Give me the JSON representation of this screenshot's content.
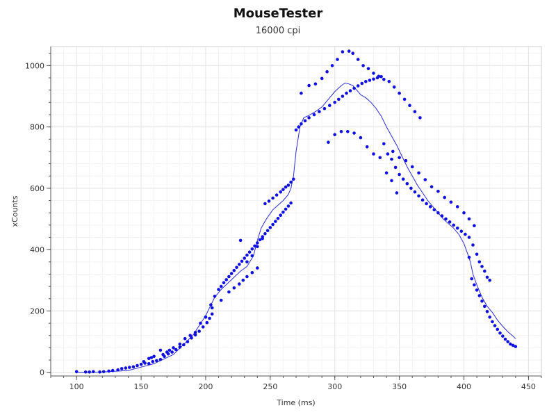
{
  "chart_data": {
    "type": "scatter",
    "title": "MouseTester",
    "subtitle": "16000 cpi",
    "xlabel": "Time (ms)",
    "ylabel": "xCounts",
    "xlim": [
      80,
      460
    ],
    "ylim": [
      -12,
      1062
    ],
    "x_ticks": [
      100,
      150,
      200,
      250,
      300,
      350,
      400,
      450
    ],
    "y_ticks": [
      0,
      200,
      400,
      600,
      800,
      1000
    ],
    "grid": true,
    "colors": {
      "points": "#1010e0",
      "line": "#2a2ad0",
      "grid": "#ececec",
      "axis": "#555555"
    },
    "series": [
      {
        "type": "scatter",
        "points": [
          [
            100,
            2
          ],
          [
            107,
            1
          ],
          [
            110,
            1
          ],
          [
            113,
            2
          ],
          [
            118,
            1
          ],
          [
            121,
            2
          ],
          [
            125,
            4
          ],
          [
            128,
            6
          ],
          [
            132,
            8
          ],
          [
            135,
            12
          ],
          [
            138,
            14
          ],
          [
            141,
            16
          ],
          [
            144,
            18
          ],
          [
            147,
            22
          ],
          [
            150,
            26
          ],
          [
            153,
            30
          ],
          [
            156,
            28
          ],
          [
            159,
            35
          ],
          [
            162,
            38
          ],
          [
            165,
            42
          ],
          [
            168,
            52
          ],
          [
            171,
            60
          ],
          [
            174,
            66
          ],
          [
            177,
            74
          ],
          [
            180,
            82
          ],
          [
            183,
            90
          ],
          [
            186,
            100
          ],
          [
            189,
            112
          ],
          [
            192,
            122
          ],
          [
            195,
            134
          ],
          [
            198,
            148
          ],
          [
            201,
            162
          ],
          [
            203,
            176
          ],
          [
            205,
            190
          ],
          [
            152,
            35
          ],
          [
            156,
            45
          ],
          [
            158,
            48
          ],
          [
            160,
            52
          ],
          [
            165,
            72
          ],
          [
            167,
            58
          ],
          [
            170,
            66
          ],
          [
            172,
            72
          ],
          [
            175,
            80
          ],
          [
            180,
            92
          ],
          [
            184,
            110
          ],
          [
            188,
            120
          ],
          [
            192,
            130
          ],
          [
            196,
            160
          ],
          [
            200,
            180
          ],
          [
            204,
            220
          ],
          [
            207,
            248
          ],
          [
            210,
            270
          ],
          [
            212,
            280
          ],
          [
            214,
            292
          ],
          [
            216,
            302
          ],
          [
            218,
            312
          ],
          [
            220,
            322
          ],
          [
            222,
            332
          ],
          [
            224,
            342
          ],
          [
            226,
            352
          ],
          [
            228,
            362
          ],
          [
            230,
            372
          ],
          [
            232,
            382
          ],
          [
            234,
            392
          ],
          [
            236,
            402
          ],
          [
            238,
            412
          ],
          [
            240,
            422
          ],
          [
            242,
            432
          ],
          [
            244,
            442
          ],
          [
            246,
            452
          ],
          [
            248,
            462
          ],
          [
            250,
            472
          ],
          [
            252,
            482
          ],
          [
            254,
            492
          ],
          [
            256,
            502
          ],
          [
            258,
            512
          ],
          [
            260,
            522
          ],
          [
            262,
            532
          ],
          [
            264,
            542
          ],
          [
            266,
            552
          ],
          [
            200,
            180
          ],
          [
            205,
            210
          ],
          [
            212,
            235
          ],
          [
            218,
            262
          ],
          [
            222,
            275
          ],
          [
            226,
            288
          ],
          [
            229,
            300
          ],
          [
            232,
            312
          ],
          [
            236,
            325
          ],
          [
            240,
            340
          ],
          [
            227,
            430
          ],
          [
            232,
            360
          ],
          [
            236,
            380
          ],
          [
            240,
            410
          ],
          [
            244,
            436
          ],
          [
            246,
            550
          ],
          [
            249,
            558
          ],
          [
            252,
            568
          ],
          [
            255,
            578
          ],
          [
            258,
            588
          ],
          [
            260,
            596
          ],
          [
            262,
            604
          ],
          [
            264,
            610
          ],
          [
            266,
            620
          ],
          [
            268,
            630
          ],
          [
            270,
            790
          ],
          [
            272,
            800
          ],
          [
            274,
            810
          ],
          [
            277,
            820
          ],
          [
            280,
            830
          ],
          [
            284,
            840
          ],
          [
            288,
            850
          ],
          [
            292,
            860
          ],
          [
            296,
            870
          ],
          [
            300,
            880
          ],
          [
            303,
            890
          ],
          [
            306,
            900
          ],
          [
            309,
            910
          ],
          [
            312,
            918
          ],
          [
            315,
            926
          ],
          [
            318,
            934
          ],
          [
            321,
            942
          ],
          [
            324,
            948
          ],
          [
            327,
            952
          ],
          [
            330,
            956
          ],
          [
            333,
            960
          ],
          [
            336,
            964
          ],
          [
            274,
            910
          ],
          [
            280,
            935
          ],
          [
            285,
            940
          ],
          [
            290,
            958
          ],
          [
            294,
            980
          ],
          [
            298,
            1000
          ],
          [
            302,
            1020
          ],
          [
            306,
            1045
          ],
          [
            311,
            1047
          ],
          [
            314,
            1040
          ],
          [
            318,
            1020
          ],
          [
            322,
            1000
          ],
          [
            326,
            990
          ],
          [
            330,
            975
          ],
          [
            334,
            965
          ],
          [
            338,
            955
          ],
          [
            342,
            948
          ],
          [
            346,
            930
          ],
          [
            350,
            910
          ],
          [
            354,
            890
          ],
          [
            358,
            870
          ],
          [
            362,
            850
          ],
          [
            366,
            830
          ],
          [
            295,
            750
          ],
          [
            300,
            775
          ],
          [
            305,
            785
          ],
          [
            310,
            785
          ],
          [
            315,
            780
          ],
          [
            320,
            765
          ],
          [
            325,
            735
          ],
          [
            330,
            712
          ],
          [
            335,
            700
          ],
          [
            340,
            650
          ],
          [
            344,
            625
          ],
          [
            348,
            585
          ],
          [
            338,
            745
          ],
          [
            341,
            712
          ],
          [
            344,
            695
          ],
          [
            347,
            668
          ],
          [
            350,
            645
          ],
          [
            353,
            630
          ],
          [
            356,
            615
          ],
          [
            359,
            600
          ],
          [
            362,
            588
          ],
          [
            365,
            575
          ],
          [
            368,
            562
          ],
          [
            371,
            550
          ],
          [
            374,
            540
          ],
          [
            377,
            530
          ],
          [
            380,
            520
          ],
          [
            383,
            510
          ],
          [
            386,
            500
          ],
          [
            389,
            490
          ],
          [
            392,
            480
          ],
          [
            395,
            470
          ],
          [
            398,
            460
          ],
          [
            401,
            450
          ],
          [
            404,
            440
          ],
          [
            407,
            415
          ],
          [
            410,
            385
          ],
          [
            412,
            360
          ],
          [
            414,
            345
          ],
          [
            416,
            330
          ],
          [
            418,
            310
          ],
          [
            420,
            300
          ],
          [
            345,
            720
          ],
          [
            350,
            700
          ],
          [
            355,
            690
          ],
          [
            360,
            670
          ],
          [
            365,
            650
          ],
          [
            370,
            628
          ],
          [
            375,
            605
          ],
          [
            380,
            590
          ],
          [
            385,
            570
          ],
          [
            390,
            555
          ],
          [
            395,
            540
          ],
          [
            400,
            520
          ],
          [
            404,
            500
          ],
          [
            408,
            478
          ],
          [
            404,
            375
          ],
          [
            406,
            305
          ],
          [
            408,
            285
          ],
          [
            410,
            268
          ],
          [
            412,
            250
          ],
          [
            414,
            232
          ],
          [
            416,
            215
          ],
          [
            418,
            198
          ],
          [
            420,
            180
          ],
          [
            422,
            165
          ],
          [
            424,
            152
          ],
          [
            426,
            140
          ],
          [
            428,
            128
          ],
          [
            430,
            118
          ],
          [
            432,
            108
          ],
          [
            434,
            100
          ],
          [
            436,
            92
          ],
          [
            438,
            88
          ],
          [
            440,
            84
          ]
        ]
      },
      {
        "type": "line",
        "points": [
          [
            100,
            0
          ],
          [
            120,
            1
          ],
          [
            140,
            6
          ],
          [
            160,
            28
          ],
          [
            175,
            58
          ],
          [
            190,
            120
          ],
          [
            200,
            185
          ],
          [
            207,
            245
          ],
          [
            212,
            270
          ],
          [
            217,
            290
          ],
          [
            222,
            310
          ],
          [
            227,
            330
          ],
          [
            232,
            345
          ],
          [
            237,
            380
          ],
          [
            240,
            430
          ],
          [
            243,
            470
          ],
          [
            247,
            500
          ],
          [
            252,
            530
          ],
          [
            256,
            545
          ],
          [
            260,
            560
          ],
          [
            264,
            580
          ],
          [
            266,
            600
          ],
          [
            268,
            640
          ],
          [
            270,
            720
          ],
          [
            273,
            800
          ],
          [
            276,
            830
          ],
          [
            280,
            838
          ],
          [
            285,
            850
          ],
          [
            290,
            865
          ],
          [
            295,
            890
          ],
          [
            300,
            915
          ],
          [
            305,
            935
          ],
          [
            308,
            943
          ],
          [
            311,
            940
          ],
          [
            314,
            935
          ],
          [
            317,
            920
          ],
          [
            320,
            905
          ],
          [
            324,
            895
          ],
          [
            328,
            880
          ],
          [
            332,
            860
          ],
          [
            336,
            835
          ],
          [
            340,
            800
          ],
          [
            344,
            770
          ],
          [
            348,
            740
          ],
          [
            352,
            705
          ],
          [
            356,
            670
          ],
          [
            360,
            640
          ],
          [
            364,
            610
          ],
          [
            368,
            585
          ],
          [
            372,
            560
          ],
          [
            376,
            540
          ],
          [
            380,
            520
          ],
          [
            384,
            500
          ],
          [
            388,
            485
          ],
          [
            392,
            470
          ],
          [
            396,
            450
          ],
          [
            400,
            420
          ],
          [
            403,
            385
          ],
          [
            405,
            360
          ],
          [
            407,
            320
          ],
          [
            410,
            285
          ],
          [
            414,
            245
          ],
          [
            418,
            215
          ],
          [
            422,
            195
          ],
          [
            426,
            170
          ],
          [
            430,
            150
          ],
          [
            434,
            132
          ],
          [
            438,
            118
          ],
          [
            440,
            110
          ]
        ]
      }
    ]
  }
}
